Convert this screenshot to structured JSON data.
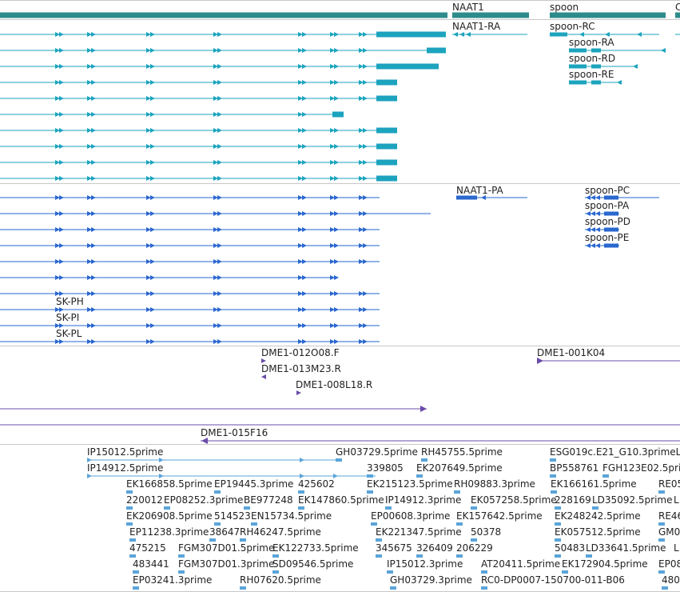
{
  "colors": {
    "gene": "#2e8b8b",
    "transcript": "#1ca3be",
    "cds": "#2a67cf",
    "clone": "#6a4ca8",
    "est": "#5aa5d9",
    "separator": "#c8c8c8"
  },
  "gene_track": {
    "genes": [
      "NAAT1",
      "spoon",
      "C"
    ]
  },
  "transcript_track": {
    "labels": [
      "NAAT1-RA",
      "spoon-RC",
      "spoon-RA",
      "spoon-RD",
      "spoon-RE"
    ]
  },
  "cds_track": {
    "labels": [
      "NAAT1-PA",
      "spoon-PC",
      "spoon-PA",
      "spoon-PD",
      "spoon-PE",
      "SK-PH",
      "SK-PI",
      "SK-PL"
    ]
  },
  "clone_track": {
    "labels": [
      "DME1-012O08.F",
      "DME1-013M23.R",
      "DME1-008L18.R",
      "DME1-001K04",
      "DME1-015F16"
    ]
  },
  "est_track": {
    "labels": [
      "IP15012.5prime",
      "IP14912.5prime",
      "GH03729.5prime",
      "RH45755.5prime",
      "ESG019c.E21_G10.3primeL",
      "339805",
      "EK207649.5prime",
      "BP558761",
      "FGH123E02.5prime",
      "EK166858.5prime",
      "EP19445.3prime",
      "425602",
      "EK215123.5prime",
      "RH09883.3prime",
      "EK166161.5prime",
      "RE05",
      "220012",
      "EP08252.3prime",
      "BE977248",
      "EK147860.5prime",
      "IP14912.3prime",
      "EK057258.5prime",
      "228169",
      "LD35092.5prime",
      "L",
      "EK206908.5prime",
      "514523",
      "EN15734.5prime",
      "EP00608.3prime",
      "EK157642.5prime",
      "EK248242.5prime",
      "RE46",
      "EP11238.3prime",
      "38647",
      "RH46247.5prime",
      "EK221347.5prime",
      "50378",
      "EK057512.5prime",
      "GM0",
      "475215",
      "FGM307D01.5prime",
      "EK122733.5prime",
      "345675",
      "326409",
      "206229",
      "50483",
      "LD33641.5prime",
      "L",
      "483441",
      "FGM307D01.3prime",
      "SD09546.5prime",
      "IP15012.3prime",
      "AT20411.5prime",
      "EK172904.5prime",
      "EP08",
      "EP03241.3prime",
      "RH07620.5prime",
      "GH03729.3prime",
      "RC0-DP0007-150700-011-B06",
      "480"
    ]
  }
}
